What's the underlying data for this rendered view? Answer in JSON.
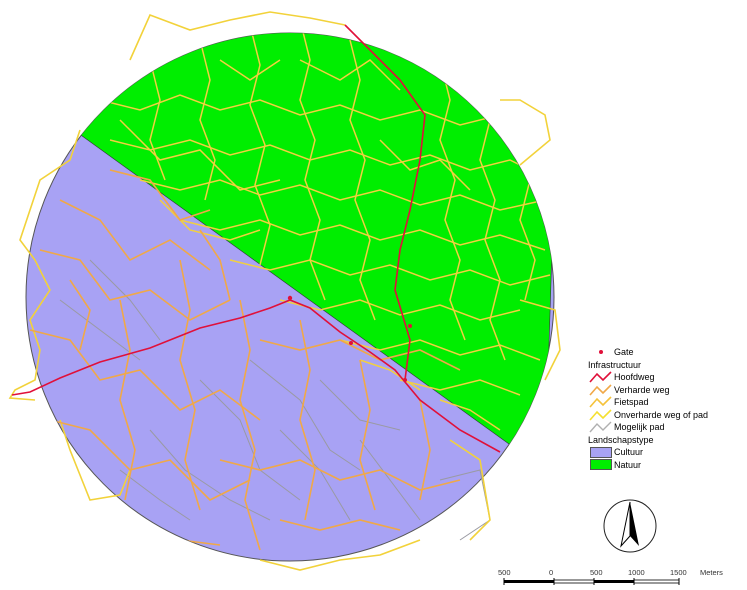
{
  "map": {
    "colors": {
      "cultuur": "#a8a2f4",
      "natuur": "#00ee00",
      "hoofdweg": "#e0103a",
      "verharde_weg": "#f0b040",
      "fietspad": "#f5c23a",
      "onverharde_weg": "#f5e030",
      "mogelijk_pad": "#b0b0b0"
    }
  },
  "legend": {
    "gate_label": "Gate",
    "infrastructure_header": "Infrastructuur",
    "items": [
      {
        "label": "Hoofdweg",
        "icon": "red-line-symbol"
      },
      {
        "label": "Verharde weg",
        "icon": "orange-line-symbol"
      },
      {
        "label": "Fietspad",
        "icon": "light-orange-line-symbol"
      },
      {
        "label": "Onverharde weg of pad",
        "icon": "yellow-line-symbol"
      },
      {
        "label": "Mogelijk pad",
        "icon": "grey-line-symbol"
      }
    ],
    "landscape_header": "Landschapstype",
    "landscape_items": [
      {
        "label": "Cultuur",
        "color": "#a8a2f4"
      },
      {
        "label": "Natuur",
        "color": "#00ee00"
      }
    ]
  },
  "scale": {
    "labels": [
      "500",
      "0",
      "500",
      "1000",
      "1500"
    ],
    "unit": "Meters"
  },
  "north_arrow": "north-arrow-icon"
}
